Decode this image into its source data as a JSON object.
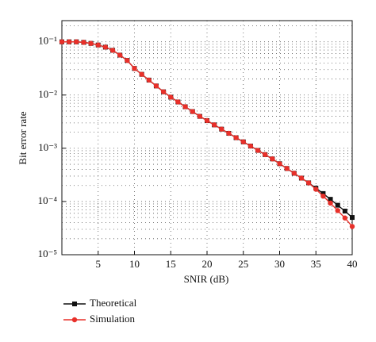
{
  "chart_data": {
    "type": "line",
    "x_label": "SNIR (dB)",
    "y_label": "Bit error rate",
    "x": [
      0,
      1,
      2,
      3,
      4,
      5,
      6,
      7,
      8,
      9,
      10,
      11,
      12,
      13,
      14,
      15,
      16,
      17,
      18,
      19,
      20,
      21,
      22,
      23,
      24,
      25,
      26,
      27,
      28,
      29,
      30,
      31,
      32,
      33,
      34,
      35,
      36,
      37,
      38,
      39,
      40
    ],
    "series": [
      {
        "name": "Theoretical",
        "color": "#111111",
        "marker": "square",
        "values": [
          0.1,
          0.1,
          0.1,
          0.0977,
          0.0933,
          0.0871,
          0.0794,
          0.0692,
          0.0562,
          0.0447,
          0.0316,
          0.0245,
          0.0191,
          0.0148,
          0.0115,
          0.00912,
          0.00741,
          0.00603,
          0.0049,
          0.00398,
          0.00331,
          0.00275,
          0.00229,
          0.00191,
          0.00158,
          0.00132,
          0.0011,
          0.000912,
          0.000759,
          0.000631,
          0.000513,
          0.000417,
          0.000339,
          0.000275,
          0.000224,
          0.000178,
          0.000141,
          0.00011,
          8.51e-05,
          6.61e-05,
          5.01e-05
        ]
      },
      {
        "name": "Simulation",
        "color": "#e8302a",
        "marker": "circle",
        "values": [
          0.1,
          0.1,
          0.1,
          0.0977,
          0.0933,
          0.0871,
          0.0794,
          0.0692,
          0.0562,
          0.0447,
          0.0316,
          0.0245,
          0.0191,
          0.0148,
          0.0115,
          0.00912,
          0.00741,
          0.00603,
          0.0049,
          0.00398,
          0.00331,
          0.00275,
          0.00229,
          0.00191,
          0.00158,
          0.00132,
          0.0011,
          0.000912,
          0.000759,
          0.000631,
          0.000513,
          0.000417,
          0.000339,
          0.000275,
          0.000224,
          0.00017,
          0.000126,
          9.33e-05,
          6.76e-05,
          4.9e-05,
          3.39e-05
        ]
      }
    ],
    "xlim": [
      0,
      40
    ],
    "xticks": [
      5,
      10,
      15,
      20,
      25,
      30,
      35,
      40
    ],
    "ylim": [
      1e-05,
      0.25
    ],
    "y_scale": "log",
    "yticks": [
      {
        "value": 1e-05,
        "label": "10⁻⁵"
      },
      {
        "value": 0.0001,
        "label": "10⁻⁴"
      },
      {
        "value": 0.001,
        "label": "10⁻³"
      },
      {
        "value": 0.01,
        "label": "10⁻²"
      },
      {
        "value": 0.1,
        "label": "10⁻¹"
      }
    ],
    "grid": true,
    "legend": "bottom-left"
  }
}
